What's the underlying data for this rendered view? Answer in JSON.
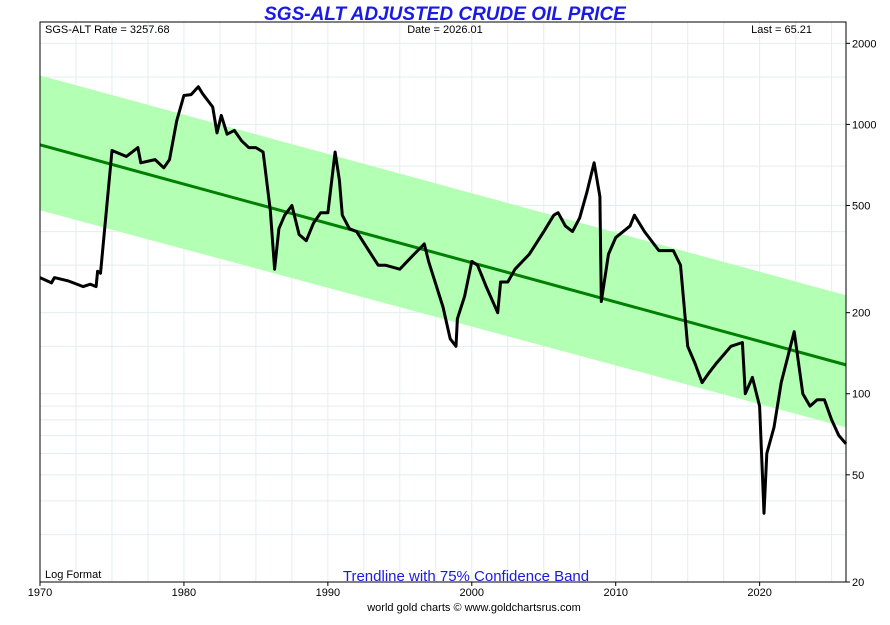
{
  "chart_data": {
    "type": "line",
    "title": "SGS-ALT ADJUSTED CRUDE OIL PRICE",
    "header": {
      "rate": "SGS-ALT Rate = 3257.68",
      "date": "Date = 2026.01",
      "last": "Last = 65.21"
    },
    "scale": "log",
    "format_label": "Log Format",
    "band_label": "Trendline with 75% Confidence Band",
    "credit": "world gold charts © www.goldchartsrus.com",
    "xlim": [
      1970,
      2026
    ],
    "ylim": [
      20,
      2400
    ],
    "x_ticks": [
      1970,
      1980,
      1990,
      2000,
      2010,
      2020
    ],
    "y_ticks": [
      2000,
      1000,
      500,
      200,
      100,
      50,
      20
    ],
    "colors": {
      "price": "#000000",
      "trend": "#008000",
      "band": "#b3ffb3",
      "title": "#1a1ae6"
    },
    "trendline": {
      "x": [
        1970,
        2026
      ],
      "y": [
        840,
        128
      ]
    },
    "band_upper": {
      "x": [
        1970,
        2026
      ],
      "y": [
        1520,
        232
      ]
    },
    "band_lower": {
      "x": [
        1970,
        2026
      ],
      "y": [
        480,
        75
      ]
    },
    "series": [
      {
        "x": [
          1970,
          1970.8,
          1971,
          1972,
          1973,
          1973.5,
          1973.9,
          1974.0,
          1974.2,
          1975,
          1976,
          1976.8,
          1977,
          1978,
          1978.6,
          1979,
          1979.5,
          1980,
          1980.5,
          1981,
          1981.3,
          1982,
          1982.3,
          1982.6,
          1983,
          1983.5,
          1984,
          1984.5,
          1985,
          1985.5,
          1986,
          1986.3,
          1986.6,
          1987,
          1987.5,
          1988,
          1988.5,
          1989,
          1989.5,
          1990,
          1990.5,
          1990.8,
          1991,
          1991.5,
          1992,
          1993,
          1993.5,
          1994,
          1995,
          1996,
          1996.7,
          1997,
          1998,
          1998.5,
          1998.9,
          1999,
          1999.5,
          2000,
          2000.4,
          2001,
          2001.8,
          2002,
          2002.5,
          2003,
          2004,
          2005,
          2005.7,
          2006,
          2006.5,
          2007,
          2007.5,
          2008,
          2008.5,
          2008.9,
          2009,
          2009.5,
          2010,
          2011,
          2011.3,
          2012,
          2013,
          2014,
          2014.5,
          2015,
          2015.5,
          2016,
          2016.5,
          2017,
          2018,
          2018.8,
          2019,
          2019.5,
          2020,
          2020.3,
          2020.5,
          2021,
          2021.5,
          2022,
          2022.4,
          2023,
          2023.5,
          2024,
          2024.5,
          2025,
          2025.5,
          2026
        ],
        "y": [
          270,
          258,
          270,
          262,
          250,
          255,
          250,
          285,
          280,
          800,
          760,
          820,
          720,
          740,
          690,
          740,
          1030,
          1280,
          1290,
          1380,
          1300,
          1160,
          930,
          1080,
          920,
          950,
          870,
          820,
          820,
          790,
          480,
          290,
          410,
          460,
          500,
          390,
          370,
          430,
          470,
          470,
          790,
          620,
          460,
          410,
          400,
          330,
          300,
          300,
          290,
          330,
          360,
          310,
          210,
          160,
          150,
          190,
          230,
          310,
          300,
          250,
          200,
          260,
          260,
          290,
          330,
          400,
          460,
          470,
          420,
          400,
          450,
          560,
          720,
          540,
          220,
          330,
          380,
          420,
          460,
          400,
          340,
          340,
          300,
          150,
          130,
          110,
          120,
          130,
          150,
          155,
          100,
          115,
          90,
          36,
          60,
          75,
          110,
          140,
          170,
          100,
          90,
          95,
          95,
          80,
          70,
          65.21
        ]
      }
    ]
  }
}
